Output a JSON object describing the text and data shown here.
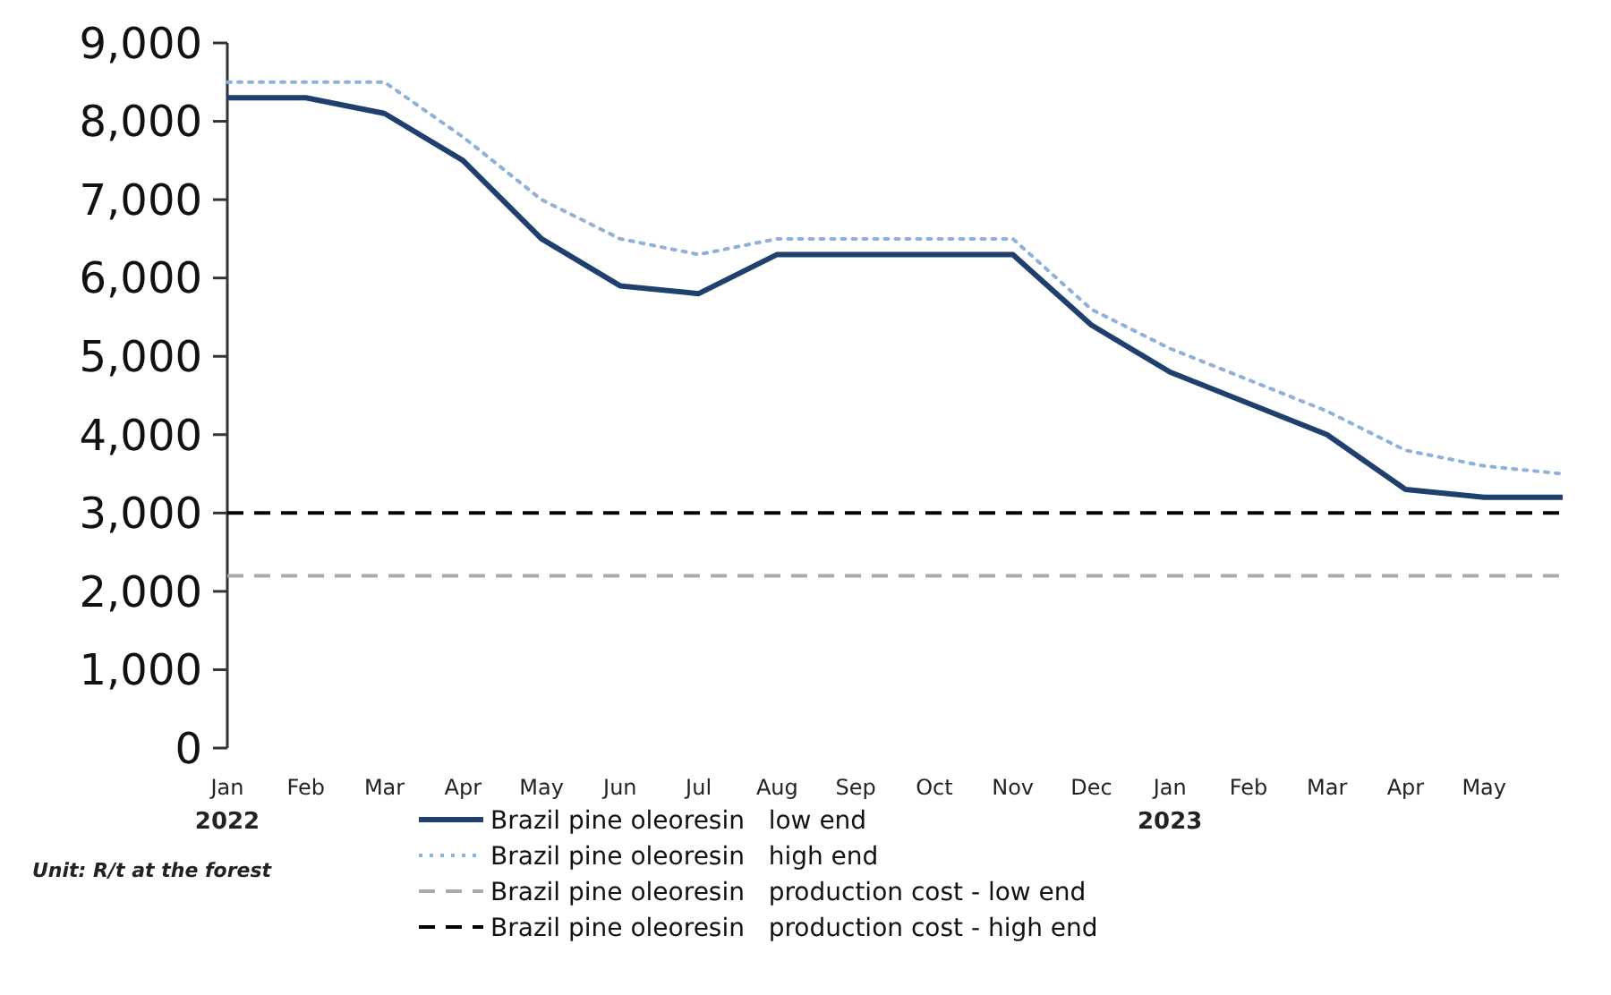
{
  "chart_data": {
    "type": "line",
    "categories": [
      "Jan\n2022",
      "Feb",
      "Mar",
      "Apr",
      "May",
      "Jun",
      "Jul",
      "Aug",
      "Sep",
      "Oct",
      "Nov",
      "Dec",
      "Jan\n2023",
      "Feb",
      "Mar",
      "Apr",
      "May",
      null
    ],
    "series": [
      {
        "name": "Brazil pine oleoresin   low end",
        "color": "#1f3f6e",
        "line_style": "solid",
        "values": [
          8300,
          8300,
          8100,
          7500,
          6500,
          5900,
          5800,
          6300,
          6300,
          6300,
          6300,
          5400,
          4800,
          4400,
          4000,
          3300,
          3200,
          3200
        ]
      },
      {
        "name": "Brazil pine oleoresin   high end",
        "color": "#8fb0d8",
        "line_style": "dotted",
        "values": [
          8500,
          8500,
          8500,
          7800,
          7000,
          6500,
          6300,
          6500,
          6500,
          6500,
          6500,
          5600,
          5100,
          4700,
          4300,
          3800,
          3600,
          3500
        ]
      },
      {
        "name": "Brazil pine oleoresin   production cost - low end",
        "color": "#aaaaaa",
        "line_style": "dashed",
        "values": [
          2200,
          2200,
          2200,
          2200,
          2200,
          2200,
          2200,
          2200,
          2200,
          2200,
          2200,
          2200,
          2200,
          2200,
          2200,
          2200,
          2200,
          2200
        ]
      },
      {
        "name": "Brazil pine oleoresin   production cost - high end",
        "color": "#000000",
        "line_style": "dashed",
        "values": [
          3000,
          3000,
          3000,
          3000,
          3000,
          3000,
          3000,
          3000,
          3000,
          3000,
          3000,
          3000,
          3000,
          3000,
          3000,
          3000,
          3000,
          3000
        ]
      }
    ],
    "ylim": [
      0,
      9000
    ],
    "yticks": [
      {
        "value": 0,
        "label": "0"
      },
      {
        "value": 1000,
        "label": "1,000"
      },
      {
        "value": 2000,
        "label": "2,000"
      },
      {
        "value": 3000,
        "label": "3,000"
      },
      {
        "value": 4000,
        "label": "4,000"
      },
      {
        "value": 5000,
        "label": "5,000"
      },
      {
        "value": 6000,
        "label": "6,000"
      },
      {
        "value": 7000,
        "label": "7,000"
      },
      {
        "value": 8000,
        "label": "8,000"
      },
      {
        "value": 9000,
        "label": "9,000"
      }
    ],
    "grid": false,
    "legend": "bottom",
    "marker": "none",
    "annotations": [
      "Unit: R/t at the forest"
    ]
  }
}
